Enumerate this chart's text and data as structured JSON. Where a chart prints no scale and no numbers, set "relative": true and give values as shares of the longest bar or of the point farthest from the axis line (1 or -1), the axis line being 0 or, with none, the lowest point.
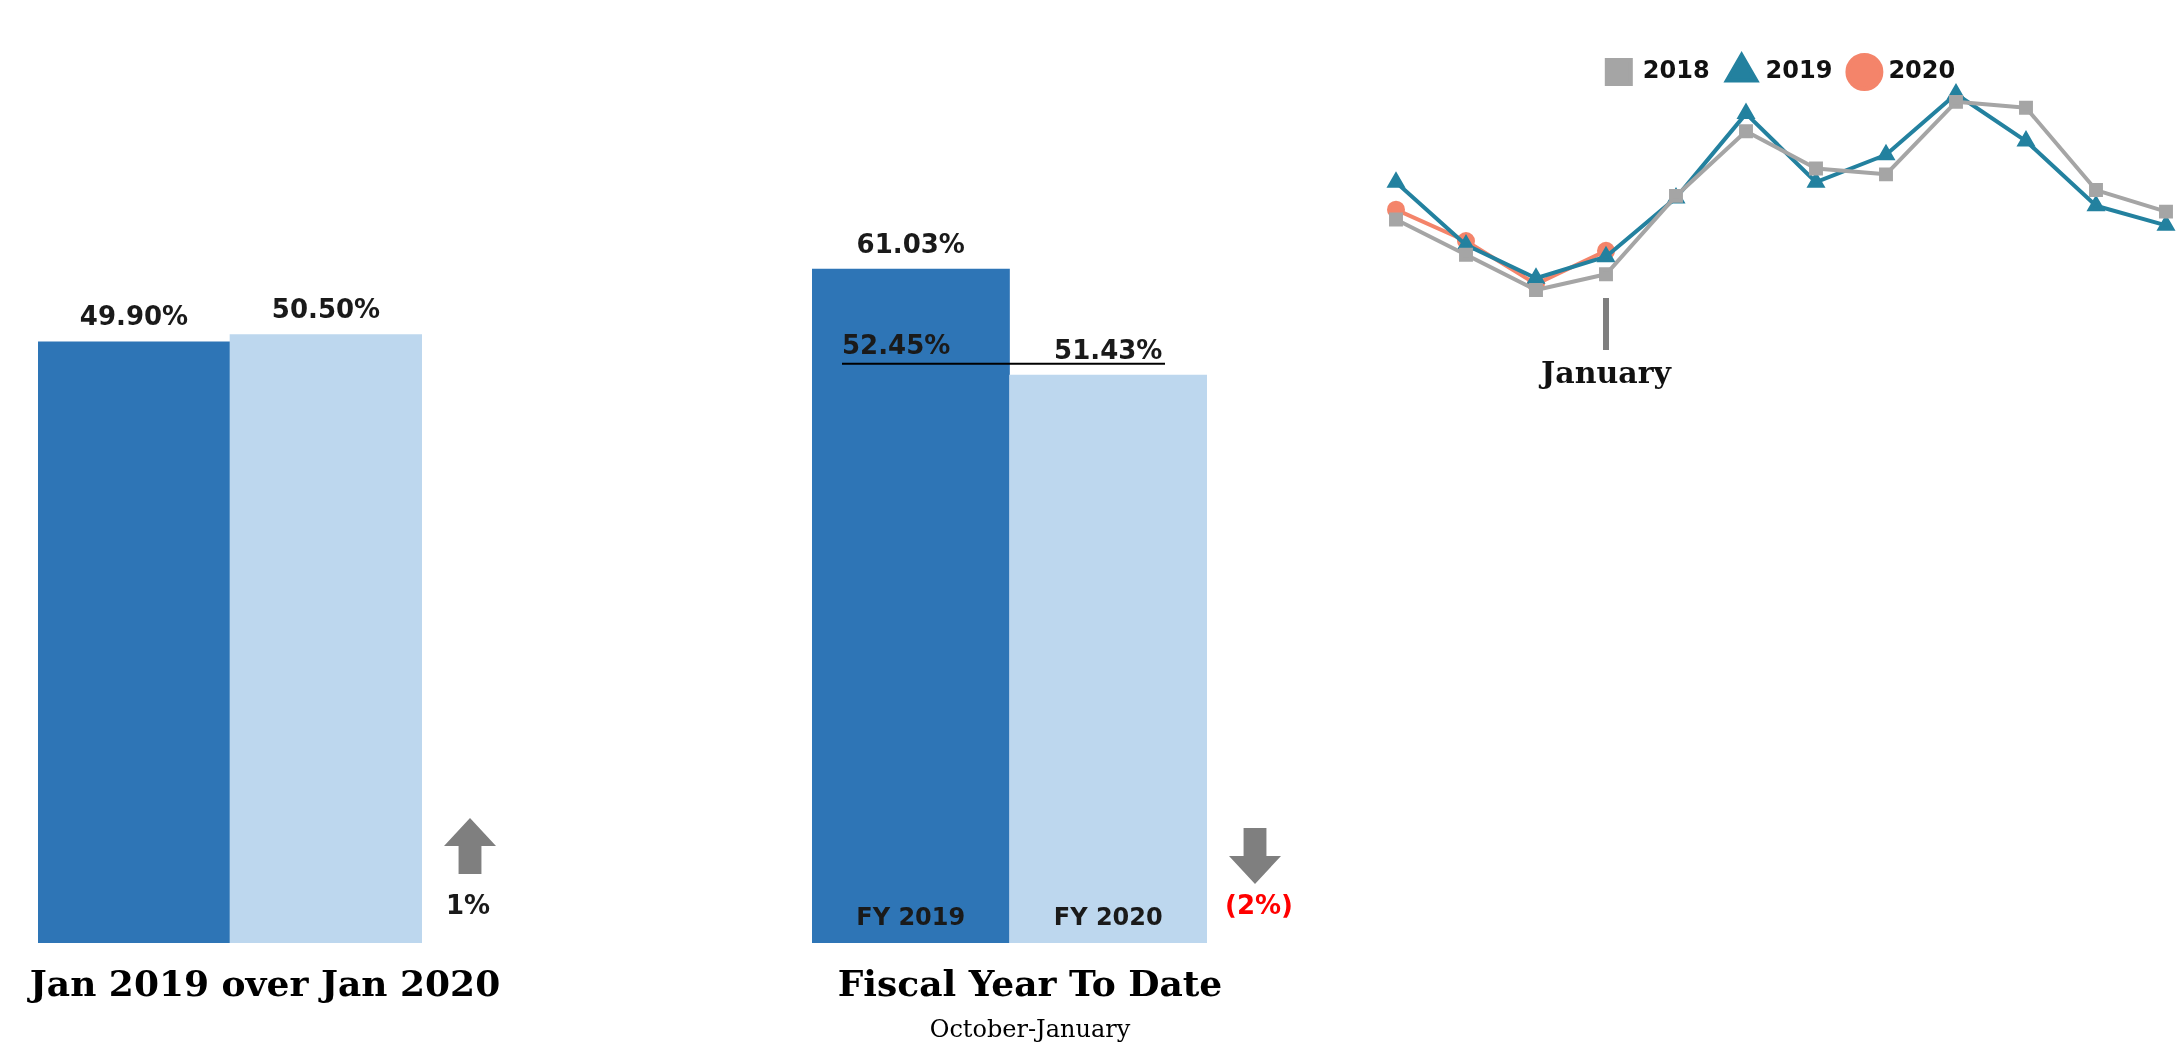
{
  "chart_data": [
    {
      "type": "bar",
      "title": "Jan 2019 over Jan 2020",
      "categories": [
        null,
        null
      ],
      "colors": [
        "#2e75b6",
        "#bdd7ee"
      ],
      "values": [
        49.9,
        50.5
      ],
      "value_labels": [
        "49.90%",
        "50.50%"
      ],
      "annotations": [
        "1%"
      ]
    },
    {
      "type": "bar",
      "title": "Fiscal Year To Date",
      "subtitle": "October-January",
      "categories": [
        "FY 2019",
        "FY 2020"
      ],
      "colors": [
        "#2e75b6",
        "#bdd7ee"
      ],
      "values": [
        61.03,
        51.43
      ],
      "value_labels": [
        "61.03%",
        "51.43%"
      ],
      "ref_lines": [
        {
          "axis": "y",
          "value": 52.45,
          "label": "52.45%"
        }
      ],
      "annotations": [
        "(2%)"
      ]
    },
    {
      "type": "line",
      "relative": true,
      "categories": [
        null,
        null,
        null,
        null,
        null,
        null,
        null,
        null,
        null,
        null,
        null,
        null
      ],
      "legend": "top",
      "annotations": [
        "January"
      ],
      "series": [
        {
          "name": "2018",
          "color": "#a5a5a5",
          "marker": "square",
          "values": [
            0.36,
            0.18,
            0,
            0.08,
            0.48,
            0.81,
            0.62,
            0.59,
            0.96,
            0.93,
            0.51,
            0.4
          ]
        },
        {
          "name": "2019",
          "color": "#23819f",
          "marker": "triangle",
          "values": [
            0.55,
            0.23,
            0.06,
            0.17,
            0.47,
            0.9,
            0.55,
            0.69,
            1,
            0.76,
            0.43,
            0.33
          ]
        },
        {
          "name": "2020",
          "color": "#f4846a",
          "marker": "circle",
          "values": [
            0.41,
            0.25,
            0.03,
            0.2,
            null,
            null,
            null,
            null,
            null,
            null,
            null,
            null
          ]
        }
      ]
    }
  ]
}
